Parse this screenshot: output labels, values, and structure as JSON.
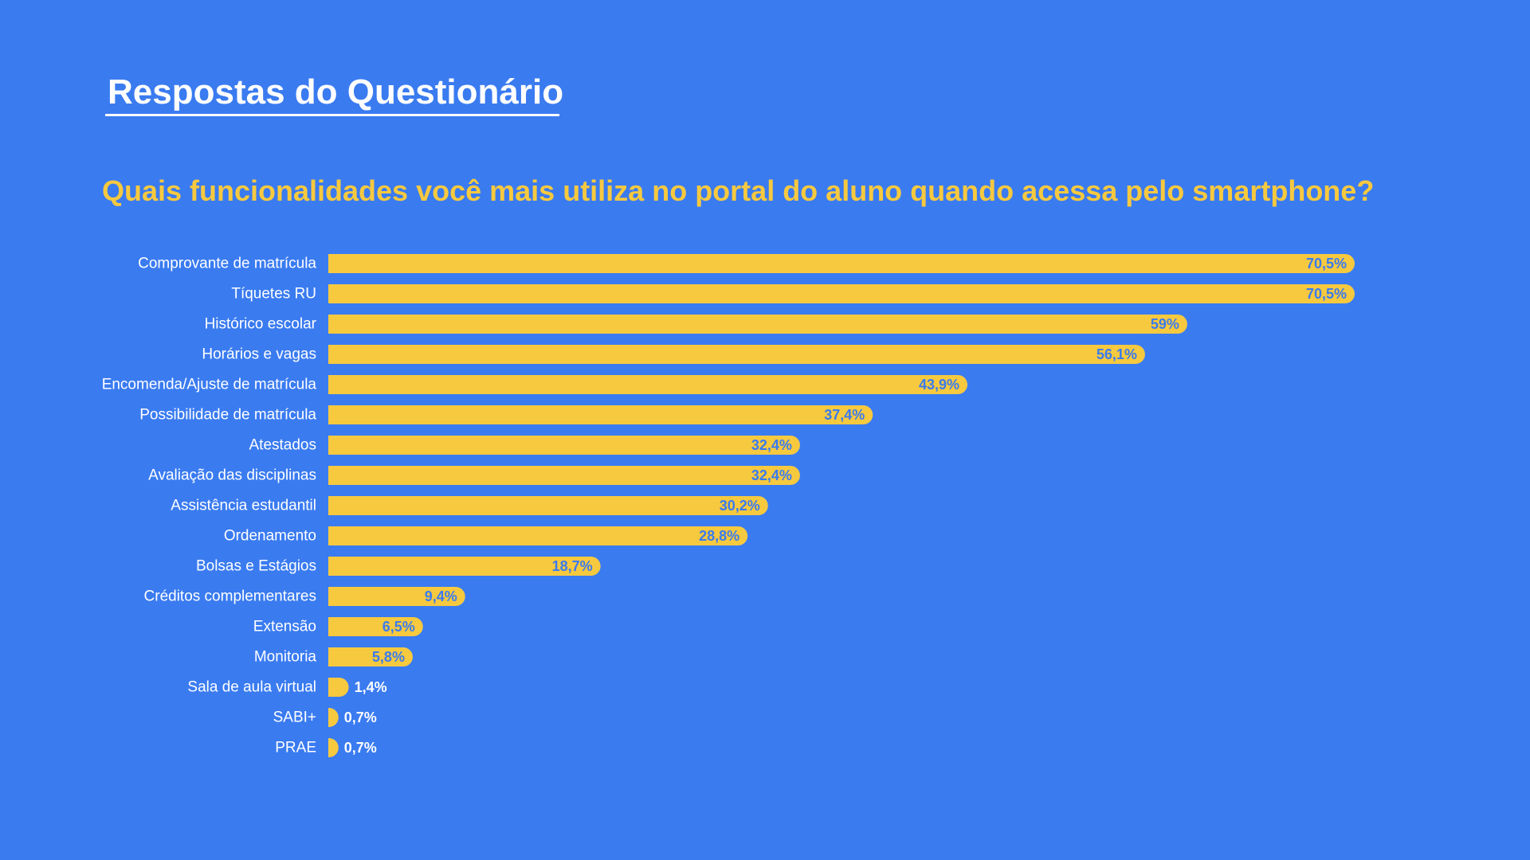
{
  "page": {
    "title": "Respostas do Questionário",
    "question": "Quais funcionalidades você mais utiliza no portal do aluno quando acessa pelo smartphone?"
  },
  "colors": {
    "background": "#3a7bf0",
    "bar": "#f7c93f",
    "value_label_inside": "#3a7bf0",
    "value_label_outside": "#ffffff",
    "category_label": "#ffffff",
    "title": "#ffffff",
    "question": "#f7c93f"
  },
  "chart_data": {
    "type": "bar",
    "orientation": "horizontal",
    "title": "",
    "xlabel": "",
    "ylabel": "",
    "value_unit": "%",
    "xlim": [
      0,
      70.5
    ],
    "grid": false,
    "legend": "none",
    "categories": [
      "Comprovante de matrícula",
      "Tíquetes RU",
      "Histórico escolar",
      "Horários e vagas",
      "Encomenda/Ajuste de matrícula",
      "Possibilidade de matrícula",
      "Atestados",
      "Avaliação das disciplinas",
      "Assistência estudantil",
      "Ordenamento",
      "Bolsas e Estágios",
      "Créditos complementares",
      "Extensão",
      "Monitoria",
      "Sala de aula virtual",
      "SABI+",
      "PRAE"
    ],
    "values": [
      70.5,
      70.5,
      59,
      56.1,
      43.9,
      37.4,
      32.4,
      32.4,
      30.2,
      28.8,
      18.7,
      9.4,
      6.5,
      5.8,
      1.4,
      0.7,
      0.7
    ],
    "value_labels": [
      "70,5%",
      "70,5%",
      "59%",
      "56,1%",
      "43,9%",
      "37,4%",
      "32,4%",
      "32,4%",
      "30,2%",
      "28,8%",
      "18,7%",
      "9,4%",
      "6,5%",
      "5,8%",
      "1,4%",
      "0,7%",
      "0,7%"
    ]
  }
}
